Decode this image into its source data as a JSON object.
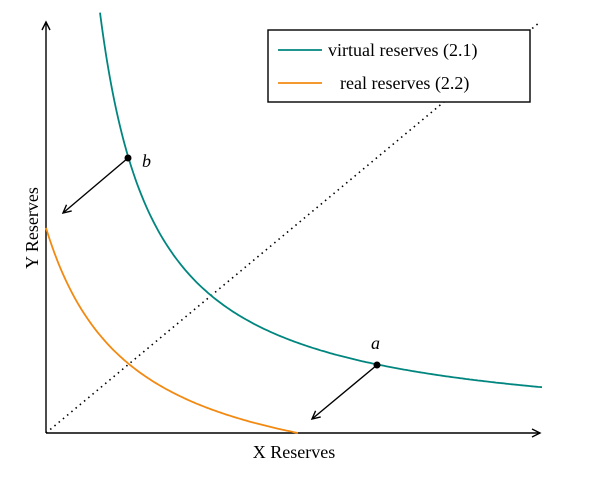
{
  "axes": {
    "x_label": "X Reserves",
    "y_label": "Y Reserves"
  },
  "legend": [
    {
      "label": "virtual reserves (2.1)"
    },
    {
      "label": "real reserves (2.2)"
    }
  ],
  "points": [
    {
      "label": "b"
    },
    {
      "label": "a"
    }
  ]
}
